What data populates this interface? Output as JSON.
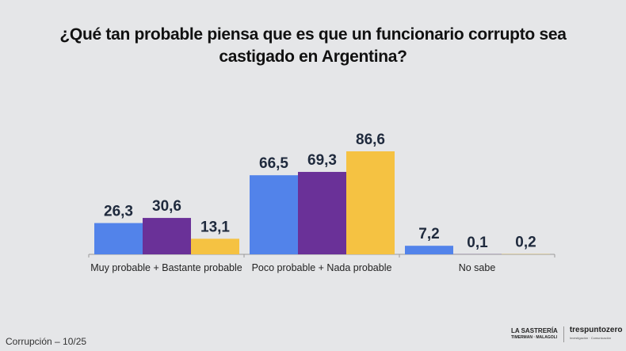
{
  "chart_data": {
    "type": "bar",
    "title": "¿Qué tan probable piensa que es que un funcionario corrupto sea castigado en Argentina?",
    "categories": [
      "Muy probable + Bastante probable",
      "Poco probable + Nada probable",
      "No sabe"
    ],
    "series": [
      {
        "values": [
          26.3,
          66.5,
          7.2
        ],
        "labels": [
          "26,3",
          "66,5",
          "7,2"
        ],
        "color": "#5283ea"
      },
      {
        "values": [
          30.6,
          69.3,
          0.1
        ],
        "labels": [
          "30,6",
          "69,3",
          "0,1"
        ],
        "color": "#6a3198"
      },
      {
        "values": [
          13.1,
          86.6,
          0.2
        ],
        "labels": [
          "13,1",
          "86,6",
          "0,2"
        ],
        "color": "#f5c242"
      }
    ],
    "ylim": [
      0,
      86.6
    ],
    "grid": false,
    "legend": "none"
  },
  "footer": {
    "left": "Corrupción – 10/25",
    "logo1": "LA SASTRERÍA",
    "logo1_sub": "TIMERMAN · MALAGOLI",
    "logo2": "trespuntozero",
    "logo2_sub": "Investigación · Comunicación"
  }
}
